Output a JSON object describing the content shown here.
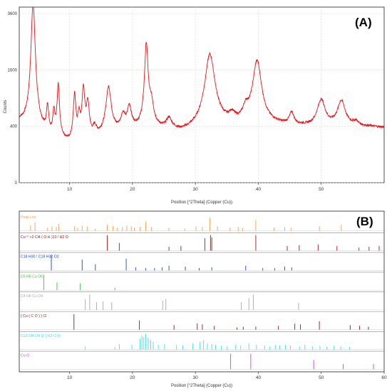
{
  "chart_data": [
    {
      "type": "line",
      "panel_label": "(A)",
      "xlabel": "Position [°2Theta] (Copper (Cu))",
      "ylabel": "Counts",
      "xlim": [
        2,
        60
      ],
      "x_ticks": [
        10,
        20,
        30,
        40,
        50
      ],
      "y_tick_labels": [
        "0",
        "400",
        "1600",
        "3600"
      ],
      "ylim": [
        0,
        3600
      ],
      "y_scale": "sqrt",
      "series_color": "#e8141b",
      "pattern": {
        "baseline": [
          [
            2,
            460
          ],
          [
            5,
            330
          ],
          [
            7,
            260
          ],
          [
            9,
            200
          ],
          [
            10,
            180
          ],
          [
            12,
            200
          ],
          [
            14,
            240
          ],
          [
            16,
            280
          ],
          [
            18,
            320
          ],
          [
            20,
            350
          ],
          [
            22,
            360
          ],
          [
            24,
            350
          ],
          [
            26,
            330
          ],
          [
            28,
            310
          ],
          [
            30,
            340
          ],
          [
            32,
            380
          ],
          [
            34,
            400
          ],
          [
            36,
            410
          ],
          [
            38,
            420
          ],
          [
            40,
            430
          ],
          [
            42,
            420
          ],
          [
            44,
            410
          ],
          [
            46,
            400
          ],
          [
            48,
            390
          ],
          [
            50,
            390
          ],
          [
            52,
            390
          ],
          [
            54,
            390
          ],
          [
            56,
            390
          ],
          [
            58,
            390
          ],
          [
            60,
            380
          ]
        ],
        "peaks": [
          {
            "x": 4.2,
            "height": 3700,
            "width": 0.35
          },
          {
            "x": 6.5,
            "height": 430,
            "width": 0.18
          },
          {
            "x": 7.5,
            "height": 360,
            "width": 0.18
          },
          {
            "x": 8.2,
            "height": 970,
            "width": 0.2
          },
          {
            "x": 10.8,
            "height": 760,
            "width": 0.22
          },
          {
            "x": 11.5,
            "height": 330,
            "width": 0.2
          },
          {
            "x": 12.2,
            "height": 870,
            "width": 0.25
          },
          {
            "x": 12.9,
            "height": 540,
            "width": 0.25
          },
          {
            "x": 14.0,
            "height": 120,
            "width": 0.3
          },
          {
            "x": 16.2,
            "height": 850,
            "width": 0.45
          },
          {
            "x": 18.5,
            "height": 220,
            "width": 0.4
          },
          {
            "x": 19.5,
            "height": 360,
            "width": 0.35
          },
          {
            "x": 22.2,
            "height": 2030,
            "width": 0.3
          },
          {
            "x": 23.0,
            "height": 380,
            "width": 0.4
          },
          {
            "x": 25.8,
            "height": 160,
            "width": 0.5
          },
          {
            "x": 32.3,
            "height": 1680,
            "width": 0.85
          },
          {
            "x": 35.8,
            "height": 120,
            "width": 0.5
          },
          {
            "x": 38.0,
            "height": 200,
            "width": 0.5
          },
          {
            "x": 39.8,
            "height": 1420,
            "width": 0.75
          },
          {
            "x": 45.3,
            "height": 190,
            "width": 0.4
          },
          {
            "x": 50.0,
            "height": 460,
            "width": 0.7
          },
          {
            "x": 53.2,
            "height": 440,
            "width": 0.7
          },
          {
            "x": 55.5,
            "height": 60,
            "width": 0.5
          }
        ]
      }
    },
    {
      "type": "stick",
      "panel_label": "(B)",
      "xlabel": "Position [°2Theta] (Copper (Cu))",
      "xlim": [
        2,
        60
      ],
      "x_ticks": [
        10,
        20,
        30,
        40,
        50,
        60
      ],
      "series": [
        {
          "name": "Peak List",
          "color": "#f5a050",
          "x": [
            3.8,
            4.5,
            6.5,
            7.2,
            7.9,
            8.3,
            10.8,
            11.3,
            12.0,
            12.8,
            14.1,
            16.0,
            16.9,
            17.6,
            18.4,
            19.1,
            19.8,
            20.3,
            21.2,
            22.1,
            23.0,
            25.8,
            28.3,
            30.1,
            31.1,
            32.3,
            33.5,
            35.5,
            36.8,
            37.5,
            39.6,
            42.5,
            44.2,
            45.2,
            49.7,
            53.2
          ],
          "h": [
            0.35,
            0.55,
            0.2,
            0.3,
            0.25,
            0.45,
            0.3,
            0.2,
            0.35,
            0.3,
            0.15,
            0.4,
            0.3,
            0.2,
            0.25,
            0.35,
            0.3,
            0.2,
            0.25,
            0.6,
            0.25,
            0.2,
            0.15,
            0.3,
            0.25,
            0.85,
            0.3,
            0.2,
            0.25,
            0.2,
            0.7,
            0.2,
            0.25,
            0.2,
            0.3,
            0.4
          ]
        },
        {
          "name": "Cu⁺² +2 Cl4 ( O H )10 ! H2 O",
          "color": "#b01010",
          "x": [
            16.0,
            17.9,
            25.8,
            27.7,
            31.5,
            32.4,
            32.6,
            39.6,
            44.6,
            46.5,
            49.5,
            52.5,
            56.0,
            57.6,
            59.2
          ],
          "h": [
            1.0,
            0.5,
            0.25,
            0.3,
            0.8,
            1.0,
            0.85,
            1.0,
            0.3,
            0.35,
            0.4,
            0.3,
            0.2,
            0.25,
            0.3
          ]
        },
        {
          "name": "C18 H30 ! C18 H32 O2",
          "color": "#1a3fd8",
          "x": [
            7.1,
            12.0,
            14.1,
            19.0,
            20.5,
            22.1,
            23.5,
            24.7,
            25.8,
            28.4,
            30.6,
            32.6,
            38.0,
            40.7,
            42.6,
            44.2,
            45.3
          ],
          "h": [
            1.0,
            0.7,
            0.4,
            0.75,
            0.2,
            0.15,
            0.15,
            0.2,
            0.3,
            0.25,
            0.15,
            0.2,
            0.3,
            0.15,
            0.15,
            0.25,
            0.2
          ]
        },
        {
          "name": "C6 H6 Cu O6",
          "color": "#34c834",
          "x": [
            5.9,
            8.0,
            11.7,
            17.2
          ],
          "h": [
            1.0,
            0.5,
            0.45,
            0.15
          ]
        },
        {
          "name": "C4 H6 Cu O4",
          "color": "#a8a8a8",
          "x": [
            12.5,
            13.2,
            14.3,
            15.3,
            16.7,
            24.8,
            25.3,
            37.3,
            38.5,
            39.2,
            46.4
          ],
          "h": [
            0.7,
            1.0,
            0.5,
            0.55,
            0.5,
            0.6,
            0.7,
            0.5,
            0.75,
            1.0,
            0.45
          ]
        },
        {
          "name": "( Cu ( C O ) ) Cl",
          "color": "#8a1a1a",
          "x": [
            10.7,
            21.1,
            26.6,
            30.3,
            31.1,
            33.0,
            36.6,
            37.6,
            39.6,
            43.2,
            45.8,
            46.7,
            49.7,
            54.6,
            56.1,
            57.5
          ],
          "h": [
            1.0,
            0.6,
            0.3,
            0.4,
            0.35,
            0.25,
            0.15,
            0.2,
            0.2,
            0.25,
            0.4,
            0.35,
            0.55,
            0.3,
            0.25,
            0.2
          ]
        },
        {
          "name": "Cu3 Cl4 O4 )2 ( H2 O )6",
          "color": "#3ee0e8",
          "x": [
            12.5,
            17.2,
            17.9,
            19.9,
            21.2,
            21.5,
            21.8,
            22.1,
            22.5,
            22.9,
            23.3,
            24.1,
            25.1,
            27.0,
            28.0,
            29.6,
            30.7,
            31.3,
            31.9,
            32.6,
            33.2,
            34.1,
            35.0,
            36.4,
            37.2,
            38.5,
            39.7,
            41.0,
            41.8,
            42.7,
            43.4,
            44.3,
            45.1,
            46.6,
            47.4,
            48.6,
            49.8,
            50.9,
            52.0,
            53.1,
            54.5
          ],
          "h": [
            0.2,
            0.15,
            0.35,
            0.3,
            0.7,
            0.9,
            0.8,
            1.0,
            0.75,
            0.6,
            0.5,
            0.3,
            0.35,
            0.3,
            0.25,
            0.4,
            0.5,
            0.6,
            0.4,
            0.35,
            0.3,
            0.25,
            0.2,
            0.3,
            0.25,
            0.4,
            0.3,
            0.25,
            0.2,
            0.3,
            0.25,
            0.3,
            0.25,
            0.2,
            0.3,
            0.2,
            0.25,
            0.2,
            0.25,
            0.2,
            0.15
          ]
        },
        {
          "name": "Cu O",
          "color": "#d040d0",
          "x": [
            35.6,
            38.8,
            48.8,
            53.5,
            58.3
          ],
          "h": [
            1.0,
            1.0,
            0.6,
            0.35,
            0.35
          ]
        }
      ]
    }
  ]
}
